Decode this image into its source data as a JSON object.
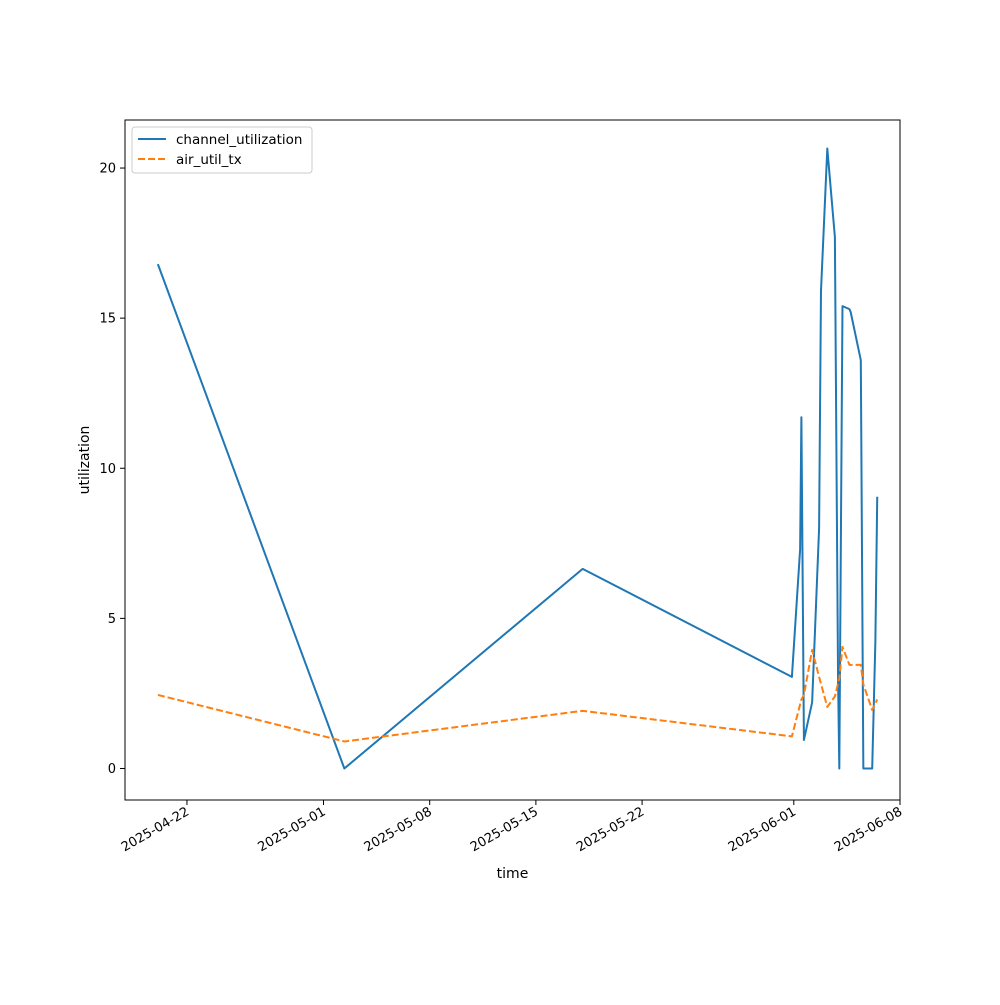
{
  "chart_data": {
    "type": "line",
    "title": "",
    "xlabel": "time",
    "ylabel": "utilization",
    "x_axis_type": "date",
    "xlim": [
      "2025-04-17T22:00",
      "2025-06-08T00:00"
    ],
    "ylim": [
      -1.05,
      21.6
    ],
    "x_tick_labels": [
      "2025-04-22",
      "2025-05-01",
      "2025-05-08",
      "2025-05-15",
      "2025-05-22",
      "2025-06-01",
      "2025-06-08"
    ],
    "y_ticks": [
      0,
      5,
      10,
      15,
      20
    ],
    "y_tick_labels": [
      "0",
      "5",
      "10",
      "15",
      "20"
    ],
    "grid": false,
    "legend_position": "top-left",
    "colors": {
      "channel_utilization": "#1f77b4",
      "air_util_tx": "#ff7f0e"
    },
    "series": [
      {
        "name": "channel_utilization",
        "style": "solid",
        "x": [
          "2025-04-20T02:00",
          "2025-05-02T09:00",
          "2025-05-18T02:00",
          "2025-05-31T21:00",
          "2025-06-01T10:00",
          "2025-06-01T12:00",
          "2025-06-01T16:00",
          "2025-06-02T05:00",
          "2025-06-02T16:00",
          "2025-06-02T19:00",
          "2025-06-03T05:00",
          "2025-06-03T17:00",
          "2025-06-03T22:00",
          "2025-06-04T00:00",
          "2025-06-04T05:00",
          "2025-06-04T16:00",
          "2025-06-04T18:00",
          "2025-06-05T10:00",
          "2025-06-05T14:00",
          "2025-06-05T19:00",
          "2025-06-06T04:00",
          "2025-06-06T09:00",
          "2025-06-06T12:00"
        ],
        "y": [
          16.8,
          0.0,
          6.65,
          3.05,
          7.3,
          11.7,
          0.95,
          2.2,
          8.0,
          15.9,
          20.65,
          17.7,
          3.0,
          0.0,
          15.4,
          15.3,
          15.2,
          13.6,
          0.0,
          0.0,
          0.0,
          4.2,
          9.05
        ]
      },
      {
        "name": "air_util_tx",
        "style": "dashed",
        "x": [
          "2025-04-20T02:00",
          "2025-05-02T09:00",
          "2025-05-18T02:00",
          "2025-05-31T21:00",
          "2025-06-01T12:00",
          "2025-06-01T16:00",
          "2025-06-02T05:00",
          "2025-06-02T16:00",
          "2025-06-03T05:00",
          "2025-06-03T17:00",
          "2025-06-04T00:00",
          "2025-06-04T05:00",
          "2025-06-04T16:00",
          "2025-06-05T10:00",
          "2025-06-05T14:00",
          "2025-06-06T04:00",
          "2025-06-06T12:00"
        ],
        "y": [
          2.45,
          0.9,
          1.92,
          1.07,
          2.3,
          2.45,
          3.95,
          3.05,
          2.05,
          2.4,
          3.0,
          4.05,
          3.45,
          3.45,
          2.8,
          1.95,
          2.3
        ]
      }
    ]
  }
}
